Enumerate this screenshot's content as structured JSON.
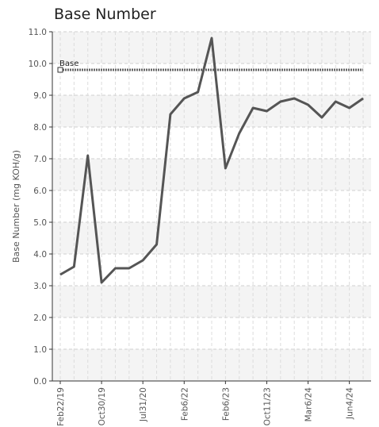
{
  "chart_data": {
    "type": "line",
    "title": "Base Number",
    "ylabel": "Base Number (mg KOH/g)",
    "xlabel": "",
    "ylim": [
      0,
      11
    ],
    "yticks": [
      "0.0",
      "1.0",
      "2.0",
      "3.0",
      "4.0",
      "5.0",
      "6.0",
      "7.0",
      "8.0",
      "9.0",
      "10.0",
      "11.0"
    ],
    "x_tick_labels": [
      "Feb22/19",
      "Oct30/19",
      "Jul31/20",
      "Feb6/22",
      "Feb6/23",
      "Oct11/23",
      "Mar6/24",
      "Jun4/24"
    ],
    "grid": true,
    "series": [
      {
        "values": [
          3.35,
          3.6,
          7.1,
          3.1,
          3.55,
          3.55,
          3.8,
          4.3,
          8.4,
          8.9,
          9.1,
          10.8,
          6.7,
          7.8,
          8.6,
          8.5,
          8.8,
          8.9,
          8.7,
          8.3,
          8.8,
          8.6,
          8.9
        ],
        "color": "#555555"
      }
    ],
    "reference_line": {
      "name": "Base",
      "value": 9.8,
      "color": "#666666"
    }
  }
}
